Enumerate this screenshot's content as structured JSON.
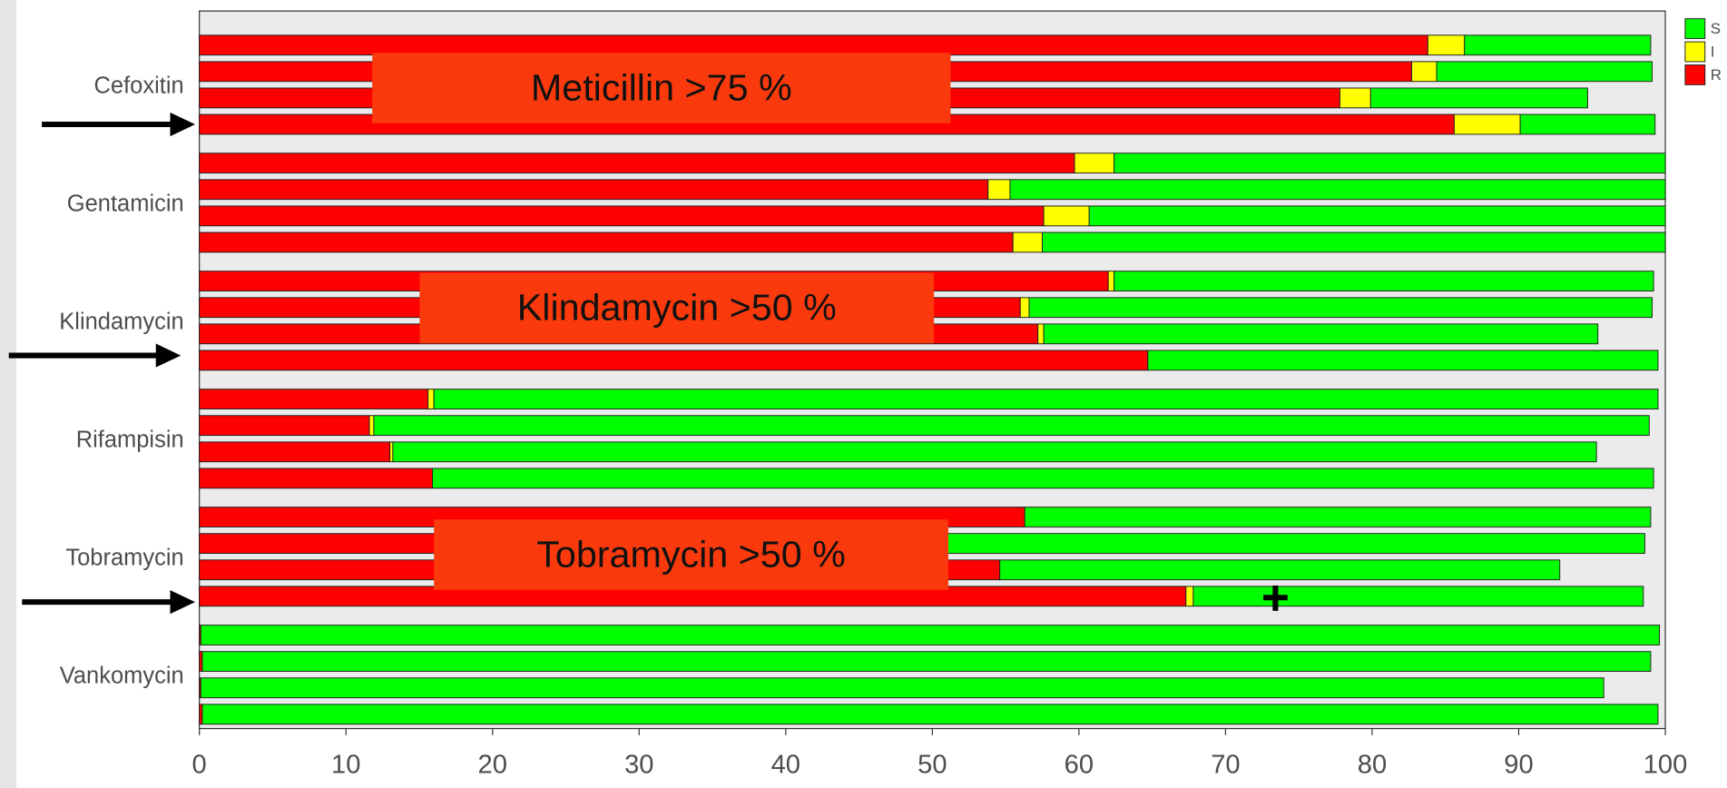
{
  "chart_data": {
    "type": "bar",
    "orientation": "horizontal",
    "stacked": true,
    "categories": [
      "Cefoxitin",
      "Gentamicin",
      "Klindamycin",
      "Rifampisin",
      "Tobramycin",
      "Vankomycin"
    ],
    "series": [
      {
        "name": "R",
        "color": "#ff0000",
        "values": [
          [
            83.8,
            82.7,
            77.8,
            85.6
          ],
          [
            59.7,
            53.8,
            57.6,
            55.5
          ],
          [
            62.0,
            56.0,
            57.2,
            64.7
          ],
          [
            15.6,
            11.6,
            13.0,
            15.9
          ],
          [
            56.3,
            51.0,
            54.6,
            67.3
          ],
          [
            0.1,
            0.2,
            0.1,
            0.2
          ]
        ]
      },
      {
        "name": "I",
        "color": "#ffff00",
        "values": [
          [
            2.5,
            1.7,
            2.1,
            4.5
          ],
          [
            2.7,
            1.5,
            3.1,
            2.0
          ],
          [
            0.4,
            0.6,
            0.4,
            0
          ],
          [
            0.4,
            0.3,
            0.2,
            0
          ],
          [
            0,
            0,
            0,
            0.5
          ],
          [
            0,
            0,
            0,
            0
          ]
        ]
      },
      {
        "name": "S",
        "color": "#00ff00",
        "values": [
          [
            12.7,
            14.7,
            14.8,
            9.2
          ],
          [
            37.6,
            44.7,
            39.3,
            42.5
          ],
          [
            36.8,
            42.5,
            37.8,
            34.8
          ],
          [
            83.5,
            87.0,
            82.1,
            83.3
          ],
          [
            42.7,
            47.6,
            38.2,
            30.7
          ],
          [
            99.5,
            98.8,
            95.7,
            99.3
          ]
        ]
      }
    ],
    "xlim": [
      0,
      100
    ],
    "xticks": [
      0,
      10,
      20,
      30,
      40,
      50,
      60,
      70,
      80,
      90,
      100
    ],
    "legend": "top-right",
    "annotations": [
      "Meticillin >75 %",
      "Klindamycin >50 %",
      "Tobramycin >50 %"
    ]
  }
}
